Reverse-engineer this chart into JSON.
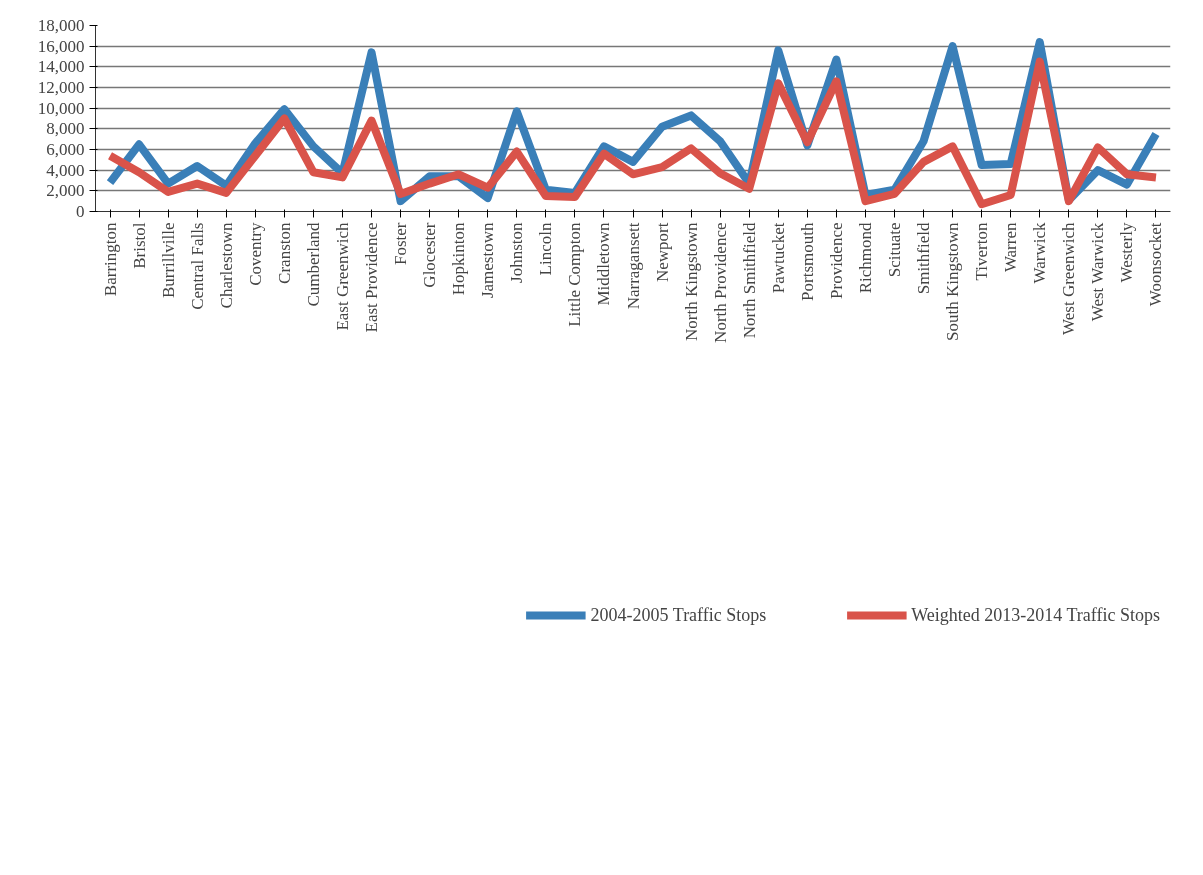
{
  "chart_data": {
    "type": "line",
    "categories": [
      "Barrington",
      "Bristol",
      "Burrillville",
      "Central Falls",
      "Charlestown",
      "Coventry",
      "Cranston",
      "Cumberland",
      "East Greenwich",
      "East Providence",
      "Foster",
      "Glocester",
      "Hopkinton",
      "Jamestown",
      "Johnston",
      "Lincoln",
      "Little Compton",
      "Middletown",
      "Narragansett",
      "Newport",
      "North Kingstown",
      "North Providence",
      "North Smithfield",
      "Pawtucket",
      "Portsmouth",
      "Providence",
      "Richmond",
      "Scituate",
      "Smithfield",
      "South Kingstown",
      "Tiverton",
      "Warren",
      "Warwick",
      "West Greenwich",
      "West Warwick",
      "Westerly",
      "Woonsocket"
    ],
    "series": [
      {
        "name": "2004-2005 Traffic Stops",
        "color": "#3a7fb8",
        "values": [
          2800,
          6500,
          2700,
          4400,
          2500,
          6600,
          9900,
          6300,
          3700,
          15400,
          1000,
          3400,
          3400,
          1300,
          9700,
          2100,
          1800,
          6300,
          4800,
          8200,
          9300,
          6800,
          2700,
          15600,
          6400,
          14700,
          1600,
          2100,
          6800,
          16000,
          4500,
          4600,
          16400,
          1100,
          4000,
          2600,
          7500
        ]
      },
      {
        "name": "Weighted 2013-2014 Traffic Stops",
        "color": "#d9534a",
        "values": [
          5400,
          3800,
          1900,
          2700,
          1800,
          5400,
          9000,
          3800,
          3300,
          8800,
          1700,
          2700,
          3600,
          2300,
          5800,
          1500,
          1400,
          5600,
          3600,
          4300,
          6100,
          3700,
          2200,
          12400,
          6700,
          12600,
          1000,
          1700,
          4800,
          6300,
          700,
          1600,
          14500,
          1000,
          6200,
          3600,
          3300
        ]
      }
    ],
    "ylim": [
      0,
      18000
    ],
    "yticks": [
      {
        "value": 0,
        "label": "0"
      },
      {
        "value": 2000,
        "label": "2,000"
      },
      {
        "value": 4000,
        "label": "4,000"
      },
      {
        "value": 6000,
        "label": "6,000"
      },
      {
        "value": 8000,
        "label": "8,000"
      },
      {
        "value": 10000,
        "label": "10,000"
      },
      {
        "value": 12000,
        "label": "12,000"
      },
      {
        "value": 14000,
        "label": "14,000"
      },
      {
        "value": 16000,
        "label": "16,000"
      },
      {
        "value": 18000,
        "label": "18,000"
      }
    ],
    "grid": "y",
    "legend": "bottom",
    "marker": "none",
    "line_style": "solid"
  }
}
